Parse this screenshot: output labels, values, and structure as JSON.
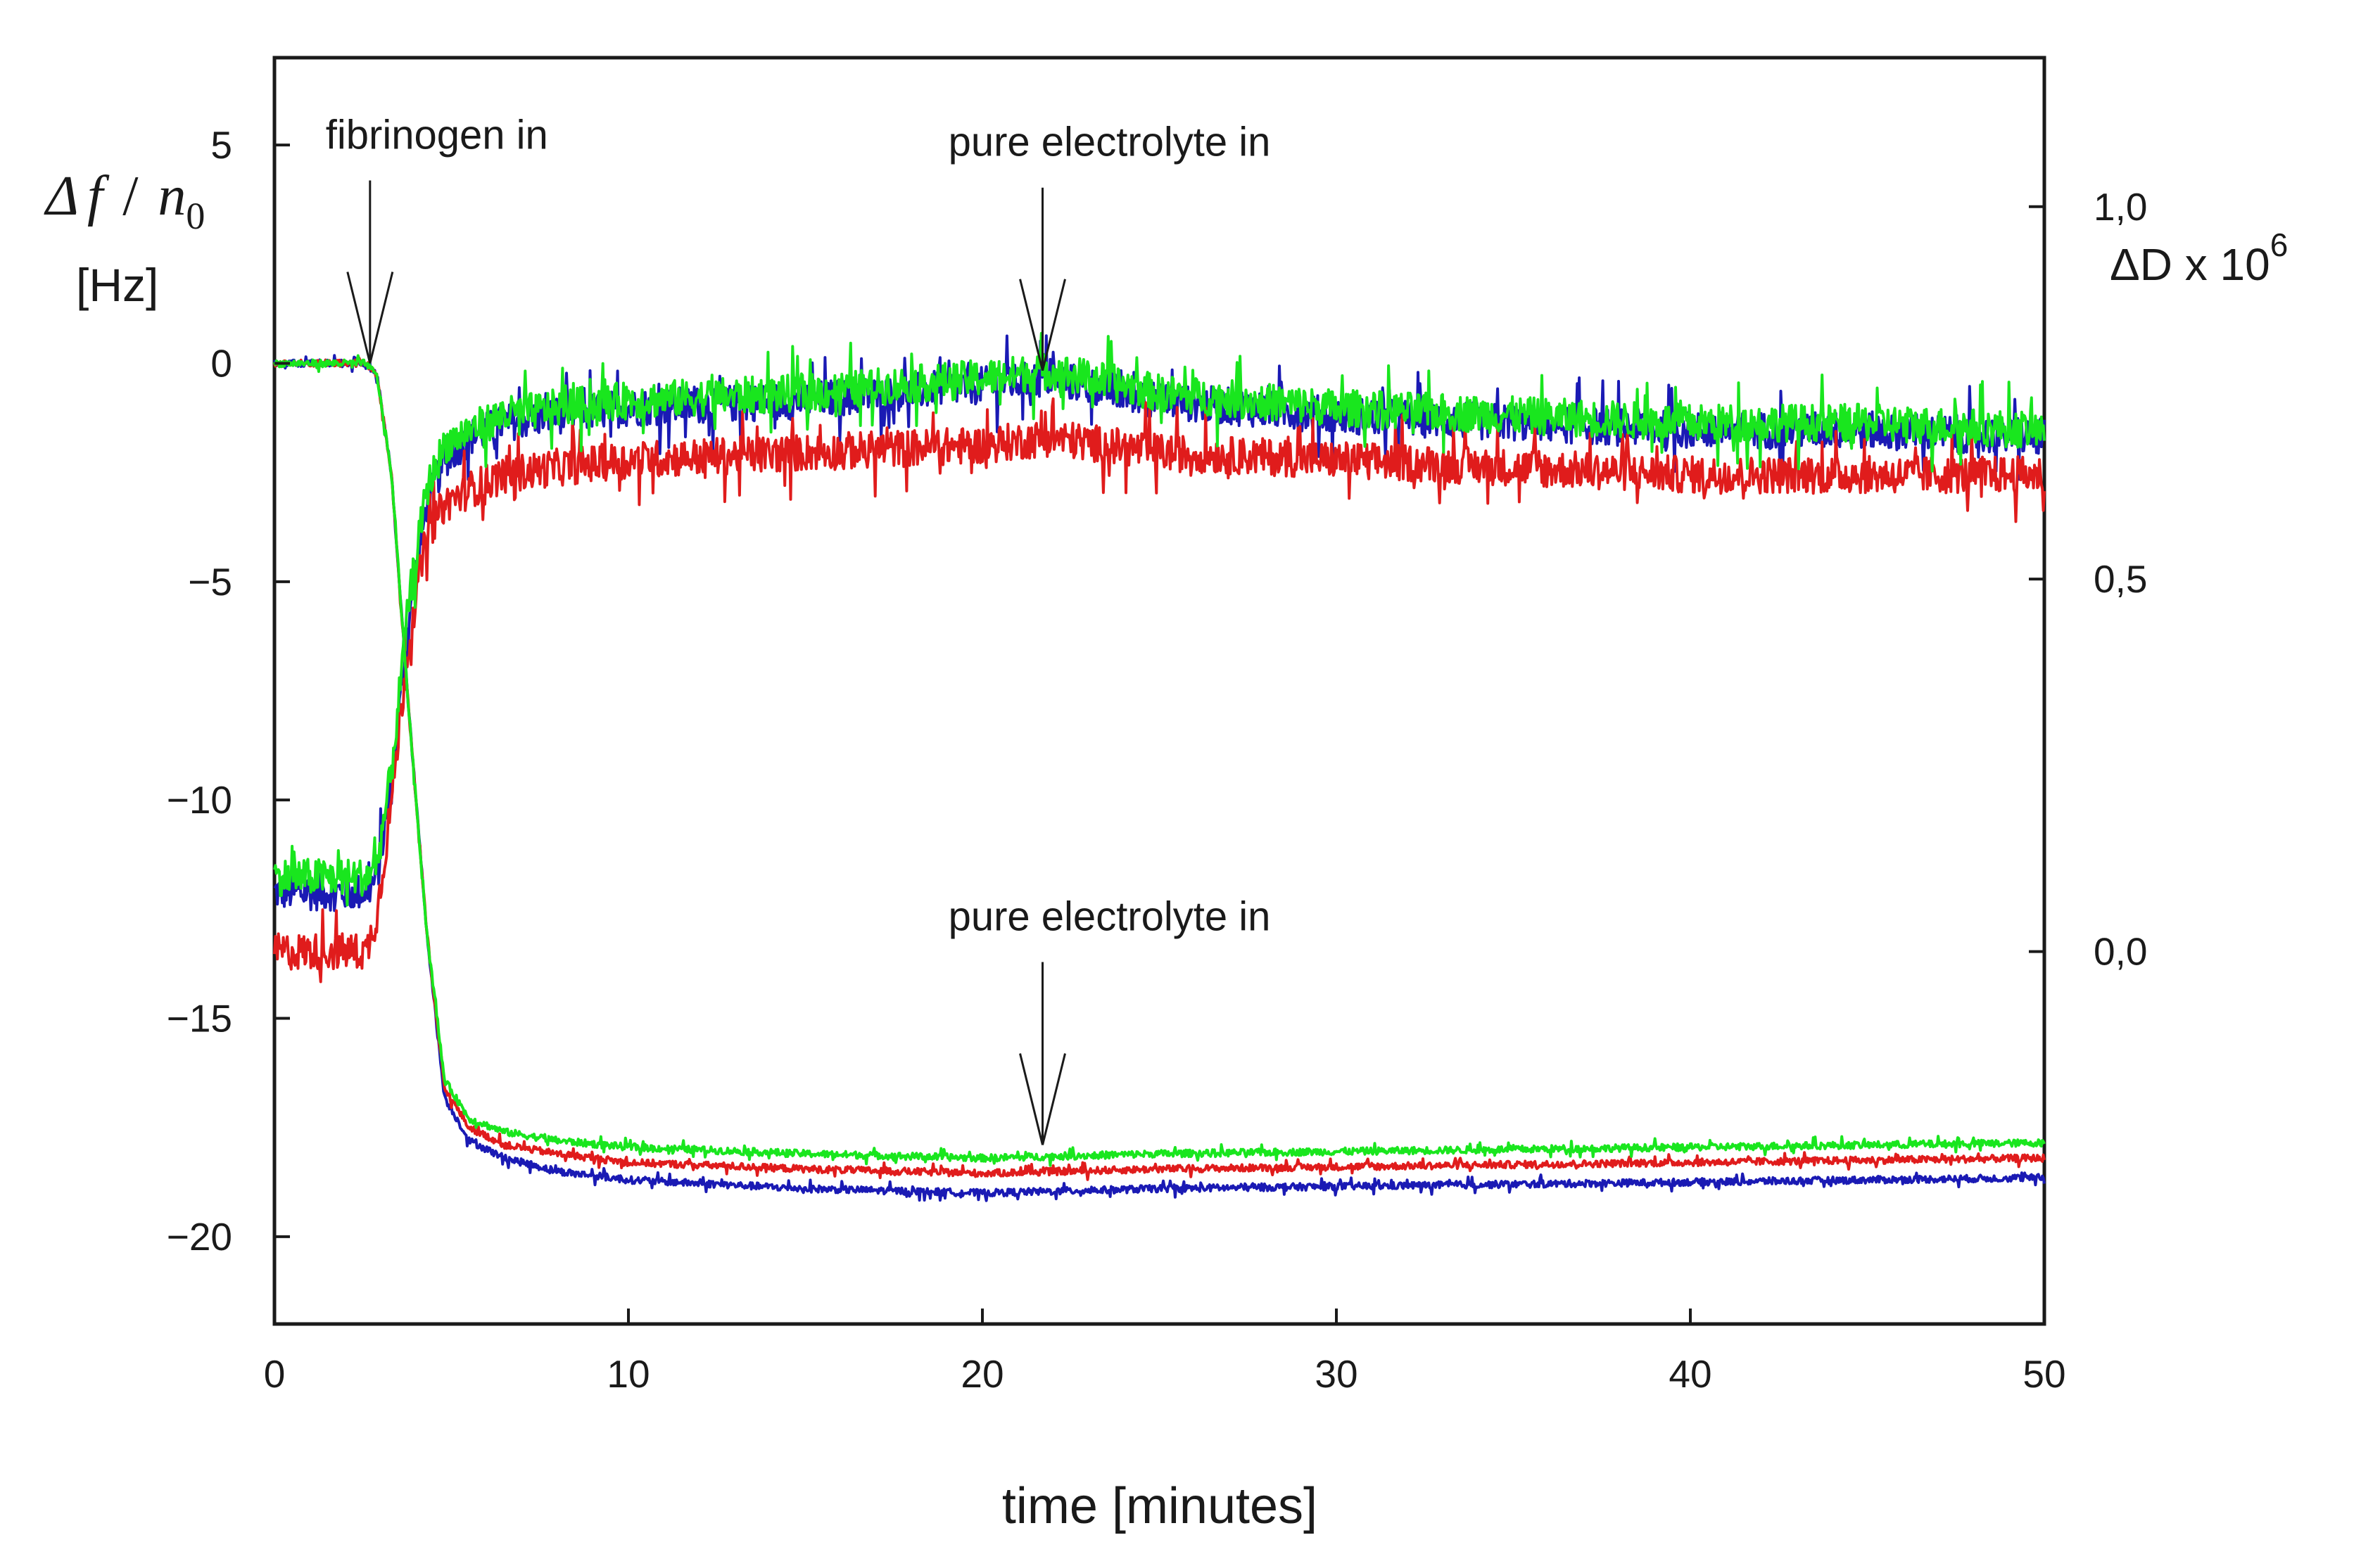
{
  "chart_data": {
    "type": "line",
    "title": "",
    "xlabel": "time [minutes]",
    "ylabel_left": {
      "math_delta": "Δ",
      "math_f": "f",
      "math_slash": "/",
      "math_n": "n",
      "math_sub": "0",
      "unit": "[Hz]"
    },
    "ylabel_right": {
      "text": "ΔD x 10",
      "superscript": "6"
    },
    "xlim": [
      0,
      50
    ],
    "ylim_left": [
      -22,
      7
    ],
    "ylim_right": [
      -0.5,
      1.2
    ],
    "x_ticks": [
      0,
      10,
      20,
      30,
      40,
      50
    ],
    "x_tick_labels": [
      "0",
      "10",
      "20",
      "30",
      "40",
      "50"
    ],
    "y_left_ticks": [
      5,
      0,
      -5,
      -10,
      -15,
      -20
    ],
    "y_left_tick_labels": [
      "5",
      "0",
      "−5",
      "−10",
      "−15",
      "−20"
    ],
    "y_right_ticks": [
      1.0,
      0.5,
      0.0,
      -0.5
    ],
    "y_right_tick_labels": [
      "1,0",
      "0,5",
      "0,0"
    ],
    "grid": false,
    "annotations": [
      {
        "text": "fibrinogen in",
        "x": 2.7,
        "y_target": 0.0,
        "axis": "left"
      },
      {
        "text": "pure electrolyte in",
        "x": 21.7,
        "y_target": 0.78,
        "axis": "right"
      },
      {
        "text": "pure electrolyte in",
        "x": 21.7,
        "y_target": -17.9,
        "axis": "left"
      }
    ],
    "series_frequency": [
      {
        "name": "blue",
        "color": "#1a1ab4",
        "axis": "left",
        "x": [
          0,
          2.6,
          2.9,
          3.3,
          3.8,
          4.3,
          4.8,
          5.5,
          6.5,
          8,
          10,
          15,
          20,
          25,
          30,
          35,
          40,
          45,
          50
        ],
        "y": [
          0,
          0,
          -0.3,
          -2.5,
          -8,
          -13,
          -16.8,
          -17.8,
          -18.2,
          -18.5,
          -18.7,
          -18.9,
          -19,
          -18.9,
          -18.85,
          -18.8,
          -18.75,
          -18.7,
          -18.65
        ]
      },
      {
        "name": "red",
        "color": "#e01c1c",
        "axis": "left",
        "x": [
          0,
          2.6,
          2.9,
          3.3,
          3.8,
          4.3,
          4.8,
          5.5,
          6.5,
          8,
          10,
          15,
          20,
          25,
          30,
          35,
          40,
          45,
          50
        ],
        "y": [
          0,
          0,
          -0.3,
          -2.5,
          -8,
          -13,
          -16.6,
          -17.5,
          -17.9,
          -18.1,
          -18.3,
          -18.45,
          -18.55,
          -18.45,
          -18.4,
          -18.35,
          -18.3,
          -18.25,
          -18.2
        ]
      },
      {
        "name": "green",
        "color": "#19e61e",
        "axis": "left",
        "x": [
          0,
          2.6,
          2.9,
          3.3,
          3.8,
          4.3,
          4.8,
          5.5,
          6.5,
          8,
          10,
          15,
          20,
          25,
          30,
          35,
          40,
          45,
          50
        ],
        "y": [
          0,
          0,
          -0.3,
          -2.5,
          -8,
          -13,
          -16.4,
          -17.3,
          -17.6,
          -17.8,
          -17.95,
          -18.1,
          -18.2,
          -18.1,
          -18.05,
          -18.0,
          -17.95,
          -17.9,
          -17.85
        ]
      }
    ],
    "series_dissipation": [
      {
        "name": "blue",
        "color": "#1a1ab4",
        "axis": "right",
        "x": [
          0,
          2.6,
          2.9,
          3.3,
          3.8,
          4.3,
          4.8,
          5.5,
          6.5,
          8,
          10,
          15,
          20,
          22,
          25,
          30,
          35,
          40,
          45,
          50
        ],
        "y": [
          0.08,
          0.08,
          0.1,
          0.22,
          0.45,
          0.6,
          0.66,
          0.69,
          0.71,
          0.72,
          0.73,
          0.74,
          0.76,
          0.77,
          0.74,
          0.72,
          0.71,
          0.7,
          0.7,
          0.69
        ]
      },
      {
        "name": "red",
        "color": "#e01c1c",
        "axis": "right",
        "x": [
          0,
          2.6,
          2.9,
          3.3,
          3.8,
          4.3,
          4.8,
          5.5,
          6.5,
          8,
          10,
          15,
          20,
          22,
          25,
          30,
          35,
          40,
          45,
          50
        ],
        "y": [
          0.0,
          0.0,
          0.05,
          0.2,
          0.42,
          0.56,
          0.6,
          0.62,
          0.64,
          0.65,
          0.66,
          0.67,
          0.68,
          0.69,
          0.67,
          0.66,
          0.65,
          0.64,
          0.64,
          0.64
        ]
      },
      {
        "name": "green",
        "color": "#19e61e",
        "axis": "right",
        "x": [
          0,
          2.6,
          2.9,
          3.3,
          3.8,
          4.3,
          4.8,
          5.5,
          6.5,
          8,
          10,
          15,
          20,
          22,
          25,
          30,
          35,
          40,
          45,
          50
        ],
        "y": [
          0.1,
          0.1,
          0.12,
          0.24,
          0.47,
          0.62,
          0.68,
          0.7,
          0.72,
          0.73,
          0.74,
          0.75,
          0.77,
          0.78,
          0.75,
          0.73,
          0.72,
          0.71,
          0.71,
          0.7
        ]
      }
    ]
  }
}
